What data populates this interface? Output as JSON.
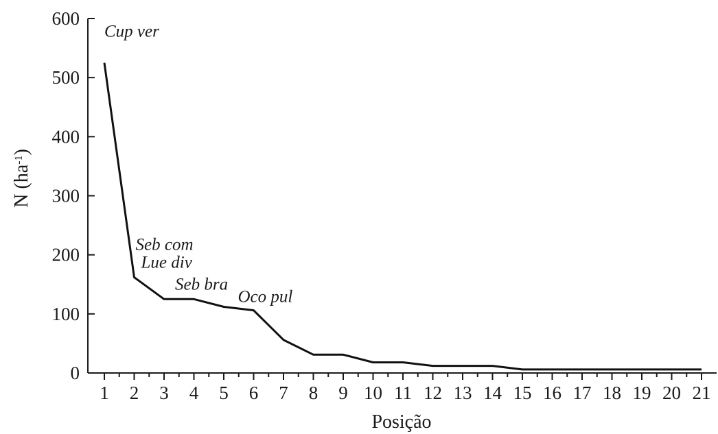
{
  "chart_data": {
    "type": "line",
    "title": "",
    "xlabel": "Posição",
    "ylabel": {
      "main": "N (ha",
      "sup": "-1",
      "close": ")"
    },
    "x": [
      1,
      2,
      3,
      4,
      5,
      6,
      7,
      8,
      9,
      10,
      11,
      12,
      13,
      14,
      15,
      16,
      17,
      18,
      19,
      20,
      21
    ],
    "series": [
      {
        "values": [
          525,
          162,
          125,
          125,
          112,
          106,
          56,
          31,
          31,
          18,
          18,
          12,
          12,
          12,
          6,
          6,
          6,
          6,
          6,
          6,
          6
        ]
      }
    ],
    "ylim": [
      0,
      600
    ],
    "yticks": [
      0,
      100,
      200,
      300,
      400,
      500,
      600
    ],
    "xlim": [
      1,
      21
    ],
    "grid": false,
    "annotations": [
      {
        "text": "Cup ver",
        "x": 1
      },
      {
        "text": "Seb com",
        "x": 2
      },
      {
        "text": "Lue div",
        "x": 2
      },
      {
        "text": "Seb bra",
        "x": 3
      },
      {
        "text": "Oco pul",
        "x": 6
      }
    ]
  }
}
